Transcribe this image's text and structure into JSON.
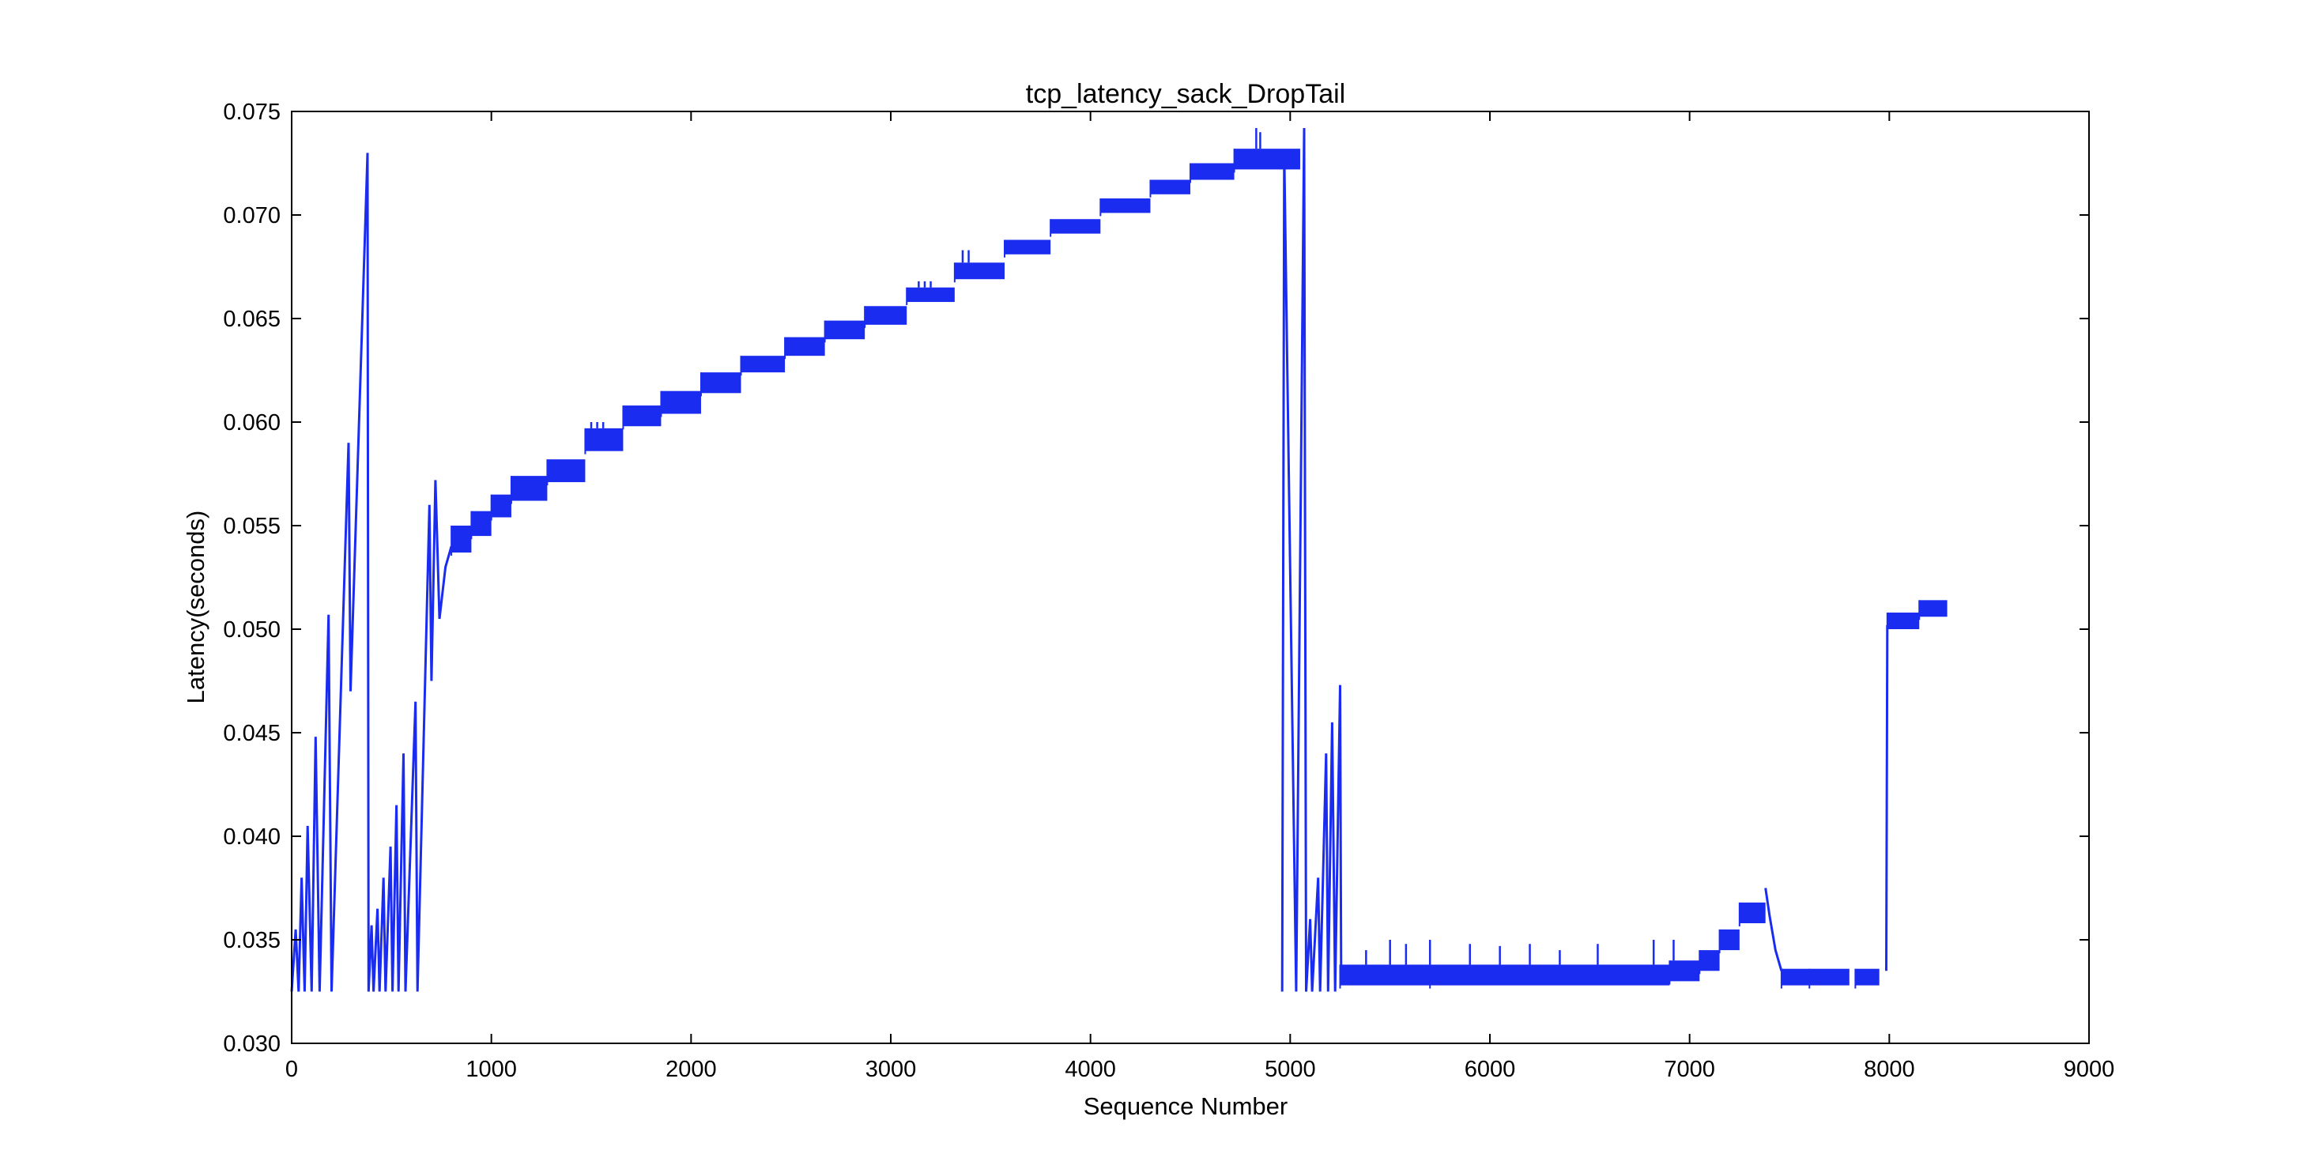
{
  "chart_data": {
    "type": "line",
    "title": "tcp_latency_sack_DropTail",
    "xlabel": "Sequence Number",
    "ylabel": "Latency(seconds)",
    "xlim": [
      0,
      9000
    ],
    "ylim": [
      0.03,
      0.075
    ],
    "xticks": [
      "0",
      "1000",
      "2000",
      "3000",
      "4000",
      "5000",
      "6000",
      "7000",
      "8000",
      "9000"
    ],
    "yticks": [
      "0.030",
      "0.035",
      "0.040",
      "0.045",
      "0.050",
      "0.055",
      "0.060",
      "0.065",
      "0.070",
      "0.075"
    ],
    "grid": false,
    "legend": "none",
    "series_color": "#1a2cf0",
    "series": [
      {
        "band_segments": [
          [
            800,
            900,
            0.0537,
            0.055
          ],
          [
            900,
            1000,
            0.0545,
            0.0557
          ],
          [
            1000,
            1100,
            0.0554,
            0.0565
          ],
          [
            1100,
            1280,
            0.0562,
            0.0574
          ],
          [
            1280,
            1470,
            0.0571,
            0.0582
          ],
          [
            1470,
            1660,
            0.0586,
            0.0597
          ],
          [
            1660,
            1850,
            0.0598,
            0.0608
          ],
          [
            1850,
            2050,
            0.0604,
            0.0615
          ],
          [
            2050,
            2250,
            0.0614,
            0.0624
          ],
          [
            2250,
            2470,
            0.0624,
            0.0632
          ],
          [
            2470,
            2670,
            0.0632,
            0.0641
          ],
          [
            2670,
            2870,
            0.064,
            0.0649
          ],
          [
            2870,
            3080,
            0.0647,
            0.0656
          ],
          [
            3080,
            3320,
            0.0658,
            0.0665
          ],
          [
            3320,
            3570,
            0.0669,
            0.0677
          ],
          [
            3570,
            3800,
            0.0681,
            0.0688
          ],
          [
            3800,
            4050,
            0.0691,
            0.0698
          ],
          [
            4050,
            4300,
            0.0701,
            0.0708
          ],
          [
            4300,
            4500,
            0.071,
            0.0717
          ],
          [
            4500,
            4720,
            0.0717,
            0.0725
          ],
          [
            4720,
            5050,
            0.0722,
            0.0732
          ],
          [
            5250,
            5700,
            0.0328,
            0.0338
          ],
          [
            5700,
            6900,
            0.0328,
            0.0338
          ],
          [
            6900,
            7050,
            0.033,
            0.034
          ],
          [
            7050,
            7150,
            0.0335,
            0.0345
          ],
          [
            7150,
            7250,
            0.0345,
            0.0355
          ],
          [
            7250,
            7380,
            0.0358,
            0.0368
          ],
          [
            7460,
            7600,
            0.0328,
            0.0336
          ],
          [
            7600,
            7800,
            0.0328,
            0.0336
          ],
          [
            7830,
            7950,
            0.0328,
            0.0336
          ],
          [
            7990,
            8150,
            0.05,
            0.0508
          ],
          [
            8150,
            8290,
            0.0506,
            0.0514
          ]
        ],
        "early_line": [
          [
            0,
            0.0325
          ],
          [
            20,
            0.0355
          ],
          [
            35,
            0.0325
          ],
          [
            50,
            0.038
          ],
          [
            65,
            0.0325
          ],
          [
            80,
            0.0405
          ],
          [
            100,
            0.0325
          ],
          [
            120,
            0.0448
          ],
          [
            140,
            0.0325
          ],
          [
            185,
            0.0507
          ],
          [
            200,
            0.0325
          ],
          [
            285,
            0.059
          ],
          [
            295,
            0.047
          ],
          [
            380,
            0.073
          ],
          [
            385,
            0.0325
          ],
          [
            400,
            0.0357
          ],
          [
            410,
            0.0325
          ],
          [
            430,
            0.0365
          ],
          [
            440,
            0.0325
          ],
          [
            460,
            0.038
          ],
          [
            470,
            0.0325
          ],
          [
            495,
            0.0395
          ],
          [
            505,
            0.0325
          ],
          [
            525,
            0.0415
          ],
          [
            535,
            0.0325
          ],
          [
            560,
            0.044
          ],
          [
            570,
            0.0325
          ],
          [
            620,
            0.0465
          ],
          [
            630,
            0.0325
          ],
          [
            690,
            0.056
          ],
          [
            700,
            0.0475
          ],
          [
            720,
            0.0572
          ],
          [
            740,
            0.0505
          ],
          [
            770,
            0.053
          ],
          [
            800,
            0.054
          ]
        ],
        "mid_line": [
          [
            4960,
            0.0325
          ],
          [
            4970,
            0.073
          ],
          [
            5030,
            0.0325
          ],
          [
            5070,
            0.0742
          ],
          [
            5080,
            0.0325
          ],
          [
            5100,
            0.036
          ],
          [
            5110,
            0.0325
          ],
          [
            5140,
            0.038
          ],
          [
            5150,
            0.0325
          ],
          [
            5180,
            0.044
          ],
          [
            5190,
            0.0325
          ],
          [
            5210,
            0.0455
          ],
          [
            5225,
            0.0325
          ],
          [
            5250,
            0.0473
          ],
          [
            5255,
            0.0335
          ]
        ],
        "spikes": [
          [
            1500,
            0.06
          ],
          [
            1530,
            0.06
          ],
          [
            1560,
            0.06
          ],
          [
            2010,
            0.0615
          ],
          [
            3140,
            0.0668
          ],
          [
            3170,
            0.0668
          ],
          [
            3200,
            0.0668
          ],
          [
            3360,
            0.0683
          ],
          [
            3390,
            0.0683
          ],
          [
            4830,
            0.0742
          ],
          [
            4850,
            0.074
          ],
          [
            5380,
            0.0345
          ],
          [
            5500,
            0.035
          ],
          [
            5580,
            0.0348
          ],
          [
            5700,
            0.035
          ],
          [
            5900,
            0.0348
          ],
          [
            6050,
            0.0347
          ],
          [
            6200,
            0.0348
          ],
          [
            6350,
            0.0345
          ],
          [
            6540,
            0.0348
          ],
          [
            6820,
            0.035
          ],
          [
            6920,
            0.035
          ]
        ],
        "descend": [
          [
            7380,
            0.0375
          ],
          [
            7400,
            0.0362
          ],
          [
            7430,
            0.0345
          ],
          [
            7460,
            0.0335
          ]
        ],
        "jump": [
          [
            7985,
            0.0335
          ],
          [
            7990,
            0.0502
          ]
        ]
      }
    ]
  }
}
